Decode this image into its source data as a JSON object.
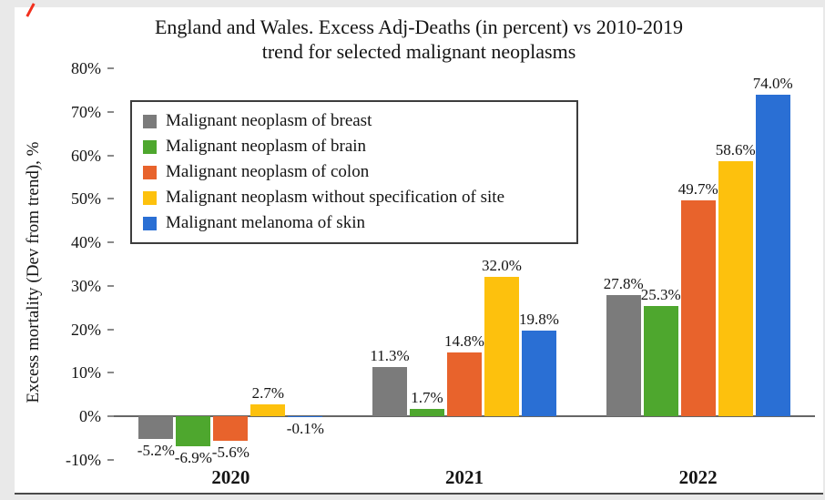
{
  "title_line1": "England and Wales. Excess Adj-Deaths (in percent) vs 2010-2019",
  "title_line2": "trend for selected malignant neoplasms",
  "y_axis_title": "Excess mortality (Dev from trend), %",
  "chart_data": {
    "type": "bar",
    "title": "England and Wales. Excess Adj-Deaths (in percent) vs 2010-2019 trend for selected malignant neoplasms",
    "xlabel": "",
    "ylabel": "Excess mortality (Dev from trend), %",
    "categories": [
      "2020",
      "2021",
      "2022"
    ],
    "series": [
      {
        "name": "Malignant neoplasm of breast",
        "color": "#7b7b7b",
        "values": [
          -5.2,
          11.3,
          27.8
        ]
      },
      {
        "name": "Malignant neoplasm of brain",
        "color": "#4ea72e",
        "values": [
          -6.9,
          1.7,
          25.3
        ]
      },
      {
        "name": "Malignant neoplasm of colon",
        "color": "#e8632c",
        "values": [
          -5.6,
          14.8,
          49.7
        ]
      },
      {
        "name": "Malignant neoplasm without specification of site",
        "color": "#fdc10d",
        "values": [
          2.7,
          32.0,
          58.6
        ]
      },
      {
        "name": "Malignant melanoma of skin",
        "color": "#2a6fd4",
        "values": [
          -0.1,
          19.8,
          74.0
        ]
      }
    ],
    "ylim": [
      -10,
      80
    ],
    "ytick_step": 10,
    "yticks": [
      "80%",
      "70%",
      "60%",
      "50%",
      "40%",
      "30%",
      "20%",
      "10%",
      "0%",
      "-10%"
    ],
    "data_labels": true,
    "data_label_format": "one_decimal_percent",
    "grid": false,
    "legend_position": "top-left"
  }
}
